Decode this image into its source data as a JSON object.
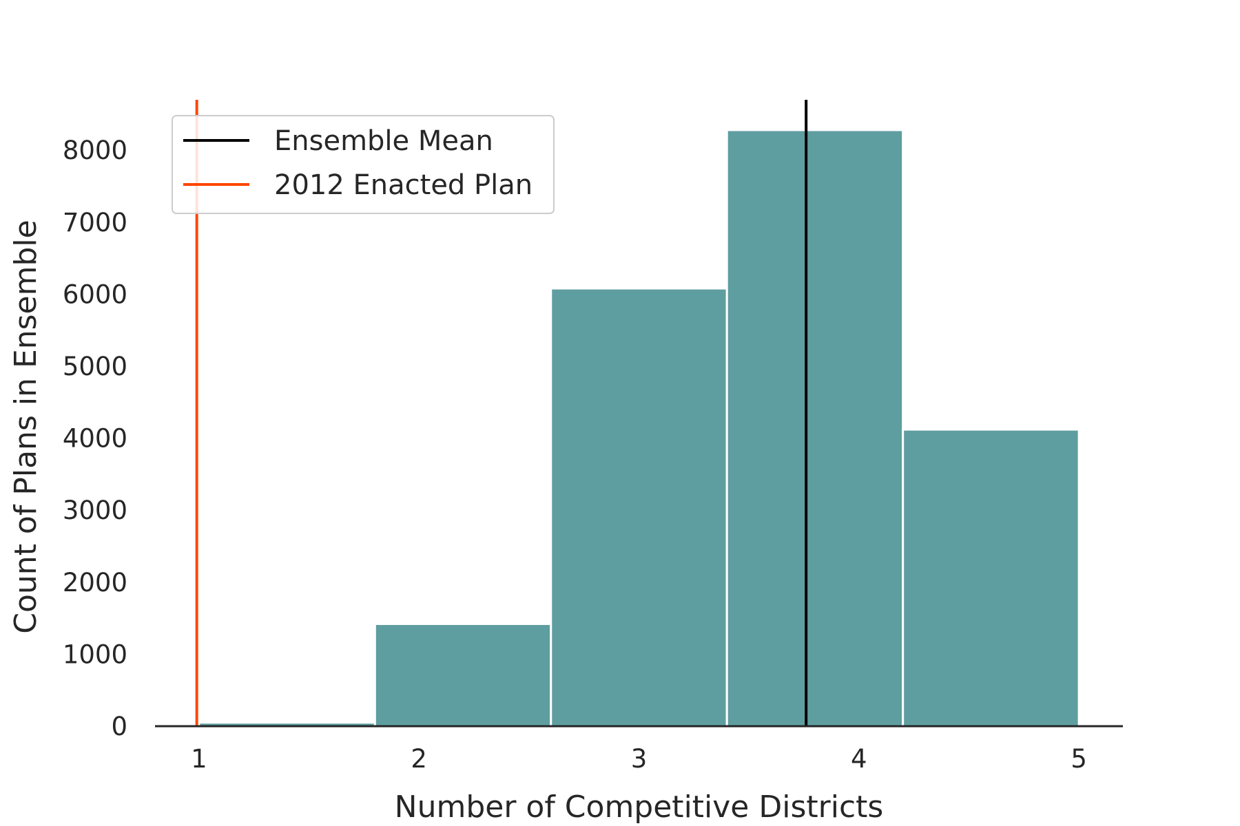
{
  "chart_data": {
    "type": "bar",
    "title": "",
    "xlabel": "Number of Competitive Districts",
    "ylabel": "Count of Plans in Ensemble",
    "x_ticks": [
      "1",
      "2",
      "3",
      "4",
      "5"
    ],
    "y_ticks": [
      "0",
      "1000",
      "2000",
      "3000",
      "4000",
      "5000",
      "6000",
      "7000",
      "8000"
    ],
    "xlim": [
      0.8,
      5.2
    ],
    "ylim": [
      0,
      8700
    ],
    "bins": [
      {
        "x0": 1.0,
        "x1": 1.8,
        "value": 50
      },
      {
        "x0": 1.8,
        "x1": 2.6,
        "value": 1420
      },
      {
        "x0": 2.6,
        "x1": 3.4,
        "value": 6080
      },
      {
        "x0": 3.4,
        "x1": 4.2,
        "value": 8280
      },
      {
        "x0": 4.2,
        "x1": 5.0,
        "value": 4120
      }
    ],
    "bar_color": "#5f9ea0",
    "reference_lines": [
      {
        "name": "Ensemble Mean",
        "x": 3.76,
        "color": "#000000"
      },
      {
        "name": "2012 Enacted Plan",
        "x": 0.99,
        "color": "#ff4500"
      }
    ],
    "legend_position": "top-left",
    "grid": false
  }
}
